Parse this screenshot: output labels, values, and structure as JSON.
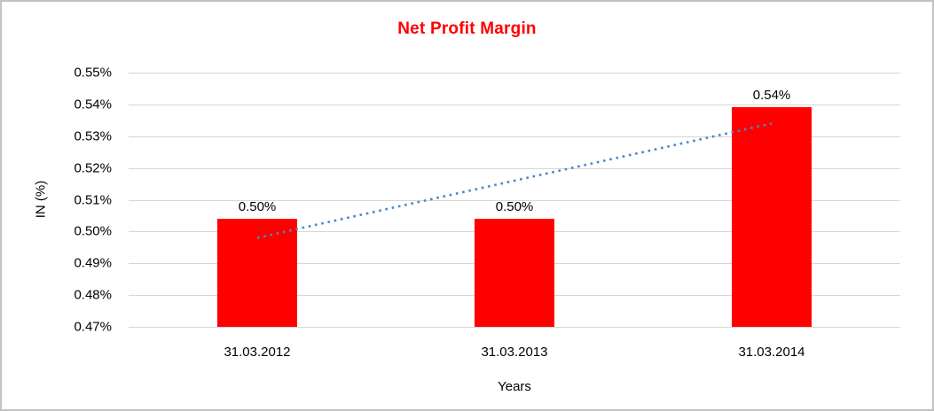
{
  "chart_data": {
    "type": "bar",
    "title": "Net Profit Margin",
    "title_color": "#ff0000",
    "xlabel": "Years",
    "ylabel": "IN (%)",
    "categories": [
      "31.03.2012",
      "31.03.2013",
      "31.03.2014"
    ],
    "values": [
      0.504,
      0.504,
      0.539
    ],
    "data_labels": [
      "0.50%",
      "0.50%",
      "0.54%"
    ],
    "y_ticks": [
      "0.55%",
      "0.54%",
      "0.53%",
      "0.52%",
      "0.51%",
      "0.50%",
      "0.49%",
      "0.48%",
      "0.47%"
    ],
    "ylim": [
      0.47,
      0.55
    ],
    "bar_color": "#ff0000",
    "gridline_color": "#d6d6d6",
    "grid": true,
    "legend": "none",
    "trendline": {
      "style": "dotted",
      "color": "#4a86c8",
      "start_value": 0.498,
      "end_value": 0.534
    }
  }
}
